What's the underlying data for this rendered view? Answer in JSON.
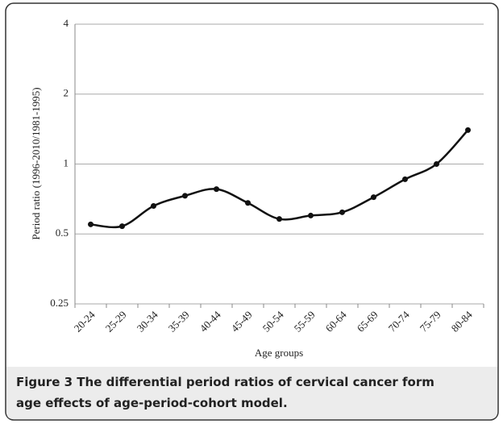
{
  "chart_data": {
    "type": "line",
    "y_label": "Period ratio (1996-2010/1981-1995)",
    "x_label": "Age groups",
    "figure_label": "Figure 3",
    "caption": "The differential period ratios of cervical cancer form age effects of age-period-cohort model.",
    "categories": [
      "20-24",
      "25-29",
      "30-34",
      "35-39",
      "40-44",
      "45-49",
      "50-54",
      "55-59",
      "60-64",
      "65-69",
      "70-74",
      "75-79",
      "80-84"
    ],
    "values": [
      0.55,
      0.54,
      0.66,
      0.73,
      0.78,
      0.68,
      0.58,
      0.6,
      0.62,
      0.72,
      0.86,
      1.0,
      1.4
    ],
    "color": "#111111",
    "yscale": "log",
    "ylim": [
      0.25,
      4
    ],
    "yticks": [
      0.25,
      0.5,
      1,
      2,
      4
    ],
    "grid": true,
    "smooth": true,
    "markers": true
  }
}
